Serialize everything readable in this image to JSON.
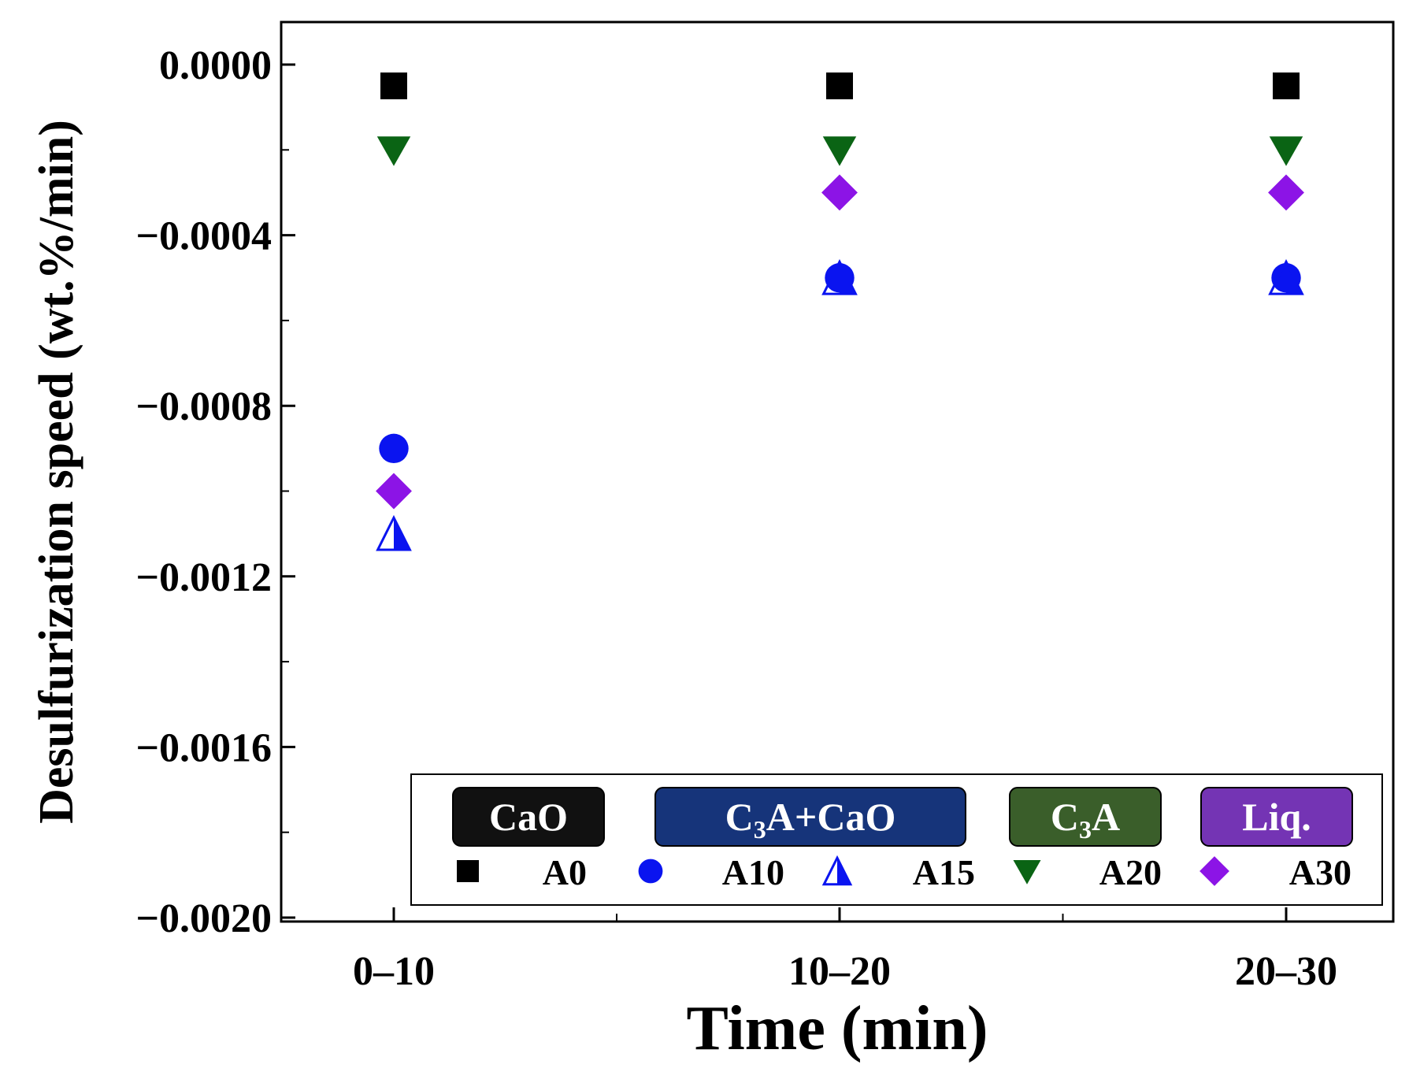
{
  "chart_data": {
    "type": "scatter",
    "title": "",
    "xlabel": "Time (min)",
    "ylabel": "Desulfurization speed (wt.%/min)",
    "categories": [
      "0–10",
      "10–20",
      "20–30"
    ],
    "ylim": [
      -0.002,
      0.0
    ],
    "yticks": [
      "0.0000",
      "−0.0004",
      "−0.0008",
      "−0.0012",
      "−0.0016",
      "−0.0020"
    ],
    "ytick_values": [
      0.0,
      -0.0004,
      -0.0008,
      -0.0012,
      -0.0016,
      -0.002
    ],
    "series": [
      {
        "name": "A0",
        "marker": "square",
        "color": "#000000",
        "values": [
          -5e-05,
          -5e-05,
          -5e-05
        ]
      },
      {
        "name": "A10",
        "marker": "circle",
        "color": "#0a14f0",
        "values": [
          -0.0009,
          -0.0005,
          -0.0005
        ]
      },
      {
        "name": "A15",
        "marker": "half-triangle",
        "color": "#0a14f0",
        "values": [
          -0.0011,
          -0.0005,
          -0.0005
        ]
      },
      {
        "name": "A20",
        "marker": "triangle-down",
        "color": "#0a6414",
        "values": [
          -0.0002,
          -0.0002,
          -0.0002
        ]
      },
      {
        "name": "A30",
        "marker": "diamond",
        "color": "#8c14e6",
        "values": [
          -0.001,
          -0.0003,
          -0.0003
        ]
      }
    ],
    "legend": {
      "placement": "bottom-right",
      "groups": [
        {
          "label": "CaO",
          "color": "#111111"
        },
        {
          "label_pre": "C",
          "label_sub": "3",
          "label_post": "A+CaO",
          "color": "#16347a"
        },
        {
          "label_pre": "C",
          "label_sub": "3",
          "label_post": "A",
          "color": "#3a5e2a"
        },
        {
          "label": "Liq.",
          "color": "#7434b4"
        }
      ]
    }
  }
}
